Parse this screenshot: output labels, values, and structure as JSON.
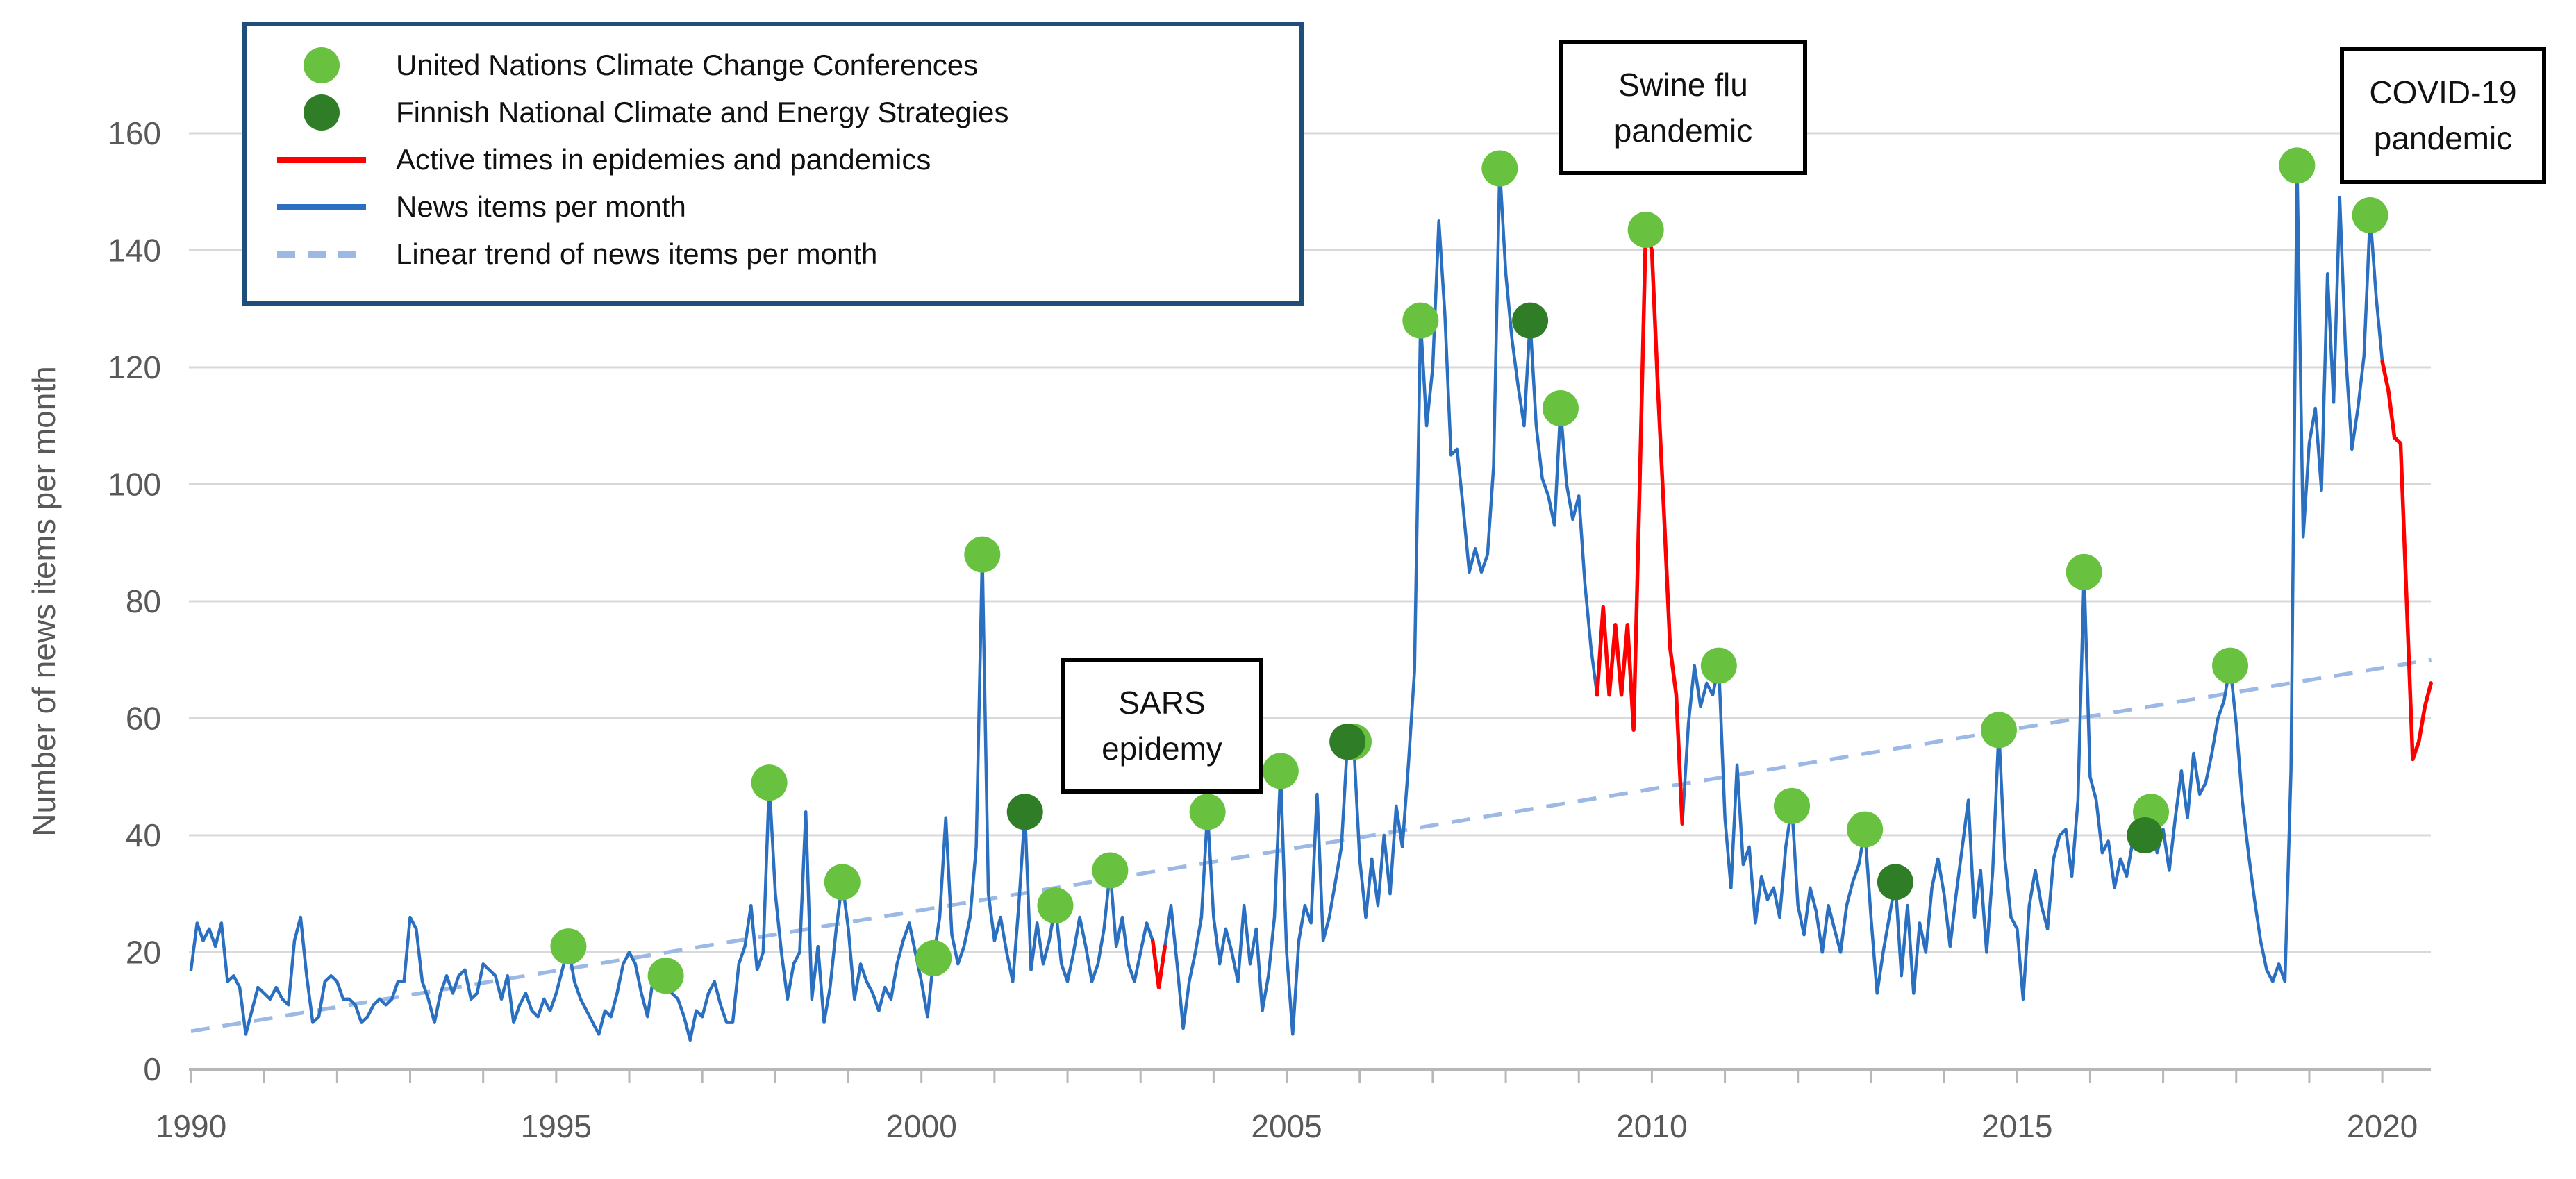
{
  "y_axis": {
    "label": "Number of news items per month",
    "ticks": [
      0,
      20,
      40,
      60,
      80,
      100,
      120,
      140,
      160
    ]
  },
  "x_axis": {
    "labeled_ticks": [
      1990,
      1995,
      2000,
      2005,
      2010,
      2015,
      2020
    ],
    "minor_tick_step_years": 1,
    "range": [
      1990,
      2020.7
    ]
  },
  "legend": {
    "items": [
      {
        "name": "un-climate-conferences",
        "marker": "dot",
        "color": "#68c23f",
        "label": "United Nations Climate Change Conferences"
      },
      {
        "name": "finnish-strategies",
        "marker": "dot",
        "color": "#2f7d26",
        "label": "Finnish National Climate and Energy Strategies"
      },
      {
        "name": "epidemic-times",
        "marker": "line",
        "color": "#ff0000",
        "label": "Active times in epidemies and pandemics"
      },
      {
        "name": "news-items",
        "marker": "line",
        "color": "#2a6fc0",
        "label": "News items per month"
      },
      {
        "name": "linear-trend",
        "marker": "dash",
        "color": "#9cb9e6",
        "label": "Linear trend of news items per month"
      }
    ]
  },
  "annotations": [
    {
      "id": "sars",
      "lines": [
        "SARS",
        "epidemy"
      ]
    },
    {
      "id": "swine",
      "lines": [
        "Swine flu",
        "pandemic"
      ]
    },
    {
      "id": "covid",
      "lines": [
        "COVID-19",
        "pandemic"
      ]
    }
  ],
  "chart_data": {
    "type": "line",
    "title": "",
    "xlabel": "",
    "ylabel": "Number of news items per month",
    "ylim": [
      0,
      170
    ],
    "grid": true,
    "series_start": {
      "year": 1990,
      "month": 1
    },
    "news_items_monthly": [
      17,
      25,
      22,
      24,
      21,
      25,
      15,
      16,
      14,
      6,
      10,
      14,
      13,
      12,
      14,
      12,
      11,
      22,
      26,
      16,
      8,
      9,
      15,
      16,
      15,
      12,
      12,
      11,
      8,
      9,
      11,
      12,
      11,
      12,
      15,
      15,
      26,
      24,
      15,
      12,
      8,
      13,
      16,
      13,
      16,
      17,
      12,
      13,
      18,
      17,
      16,
      12,
      16,
      8,
      11,
      13,
      10,
      9,
      12,
      10,
      13,
      17,
      21,
      15,
      12,
      10,
      8,
      6,
      10,
      9,
      13,
      18,
      20,
      18,
      13,
      9,
      16,
      15,
      16,
      13,
      12,
      9,
      5,
      10,
      9,
      13,
      15,
      11,
      8,
      8,
      18,
      21,
      28,
      17,
      20,
      49,
      30,
      20,
      12,
      18,
      20,
      44,
      12,
      21,
      8,
      14,
      24,
      32,
      24,
      12,
      18,
      15,
      13,
      10,
      14,
      12,
      18,
      22,
      25,
      20,
      15,
      9,
      19,
      26,
      43,
      23,
      18,
      21,
      26,
      38,
      88,
      30,
      22,
      26,
      20,
      15,
      28,
      44,
      17,
      25,
      18,
      22,
      28,
      18,
      15,
      20,
      26,
      21,
      15,
      18,
      24,
      34,
      21,
      26,
      18,
      15,
      20,
      25,
      22,
      14,
      21,
      28,
      18,
      7,
      15,
      20,
      26,
      44,
      26,
      18,
      24,
      20,
      15,
      28,
      18,
      24,
      10,
      16,
      26,
      51,
      20,
      6,
      22,
      28,
      25,
      47,
      22,
      26,
      32,
      38,
      56,
      56,
      36,
      26,
      36,
      28,
      40,
      30,
      45,
      38,
      52,
      68,
      128,
      110,
      120,
      145,
      129,
      105,
      106,
      96,
      85,
      89,
      85,
      88,
      103,
      154,
      136,
      125,
      117,
      110,
      128,
      110,
      101,
      98,
      93,
      113,
      100,
      94,
      98,
      83,
      72,
      64,
      79,
      64,
      76,
      64,
      76,
      58,
      100,
      143.5,
      140,
      116,
      95,
      72,
      64,
      42,
      59,
      69,
      62,
      66,
      64,
      69,
      43,
      31,
      52,
      35,
      38,
      25,
      33,
      29,
      31,
      26,
      38,
      45,
      28,
      23,
      31,
      27,
      20,
      28,
      24,
      20,
      28,
      32,
      35,
      41,
      26,
      13,
      20,
      26,
      32,
      16,
      28,
      13,
      25,
      20,
      31,
      36,
      30,
      21,
      30,
      38,
      46,
      26,
      34,
      20,
      34,
      58,
      36,
      26,
      24,
      12,
      28,
      34,
      28,
      24,
      36,
      40,
      41,
      33,
      46,
      85,
      50,
      46,
      37,
      39,
      31,
      36,
      33,
      39,
      45,
      40,
      44,
      37,
      41,
      34,
      43,
      51,
      43,
      54,
      47,
      49,
      54,
      60,
      63,
      69,
      59,
      46,
      37,
      29,
      22,
      17,
      15,
      18,
      15,
      51,
      154.5,
      91,
      107,
      113,
      99,
      136,
      114,
      149,
      122,
      106,
      113,
      122,
      146,
      132,
      121,
      116,
      108,
      107,
      80,
      53,
      56,
      62,
      66
    ],
    "epidemic_red_ranges": [
      [
        2003.12,
        2003.37
      ],
      [
        2009.2,
        2010.45
      ],
      [
        2019.97,
        2020.7
      ]
    ],
    "trend_line": {
      "start_t": 1990.0,
      "start_value": 6.5,
      "end_t": 2020.67,
      "end_value": 70
    },
    "un_conference_points": [
      [
        1995.167,
        21
      ],
      [
        1996.5,
        16
      ],
      [
        1997.917,
        49
      ],
      [
        1998.917,
        32
      ],
      [
        2000.167,
        19
      ],
      [
        2000.833,
        88
      ],
      [
        2001.833,
        28
      ],
      [
        2002.583,
        34
      ],
      [
        2003.917,
        44
      ],
      [
        2004.917,
        51
      ],
      [
        2005.917,
        56
      ],
      [
        2006.833,
        128
      ],
      [
        2007.917,
        154
      ],
      [
        2008.75,
        113
      ],
      [
        2009.917,
        143.5
      ],
      [
        2010.917,
        69
      ],
      [
        2011.917,
        45
      ],
      [
        2012.917,
        41
      ],
      [
        2014.75,
        58
      ],
      [
        2015.917,
        85
      ],
      [
        2016.833,
        44
      ],
      [
        2017.917,
        69
      ],
      [
        2018.833,
        154.5
      ],
      [
        2019.833,
        146
      ]
    ],
    "finnish_strategy_points": [
      [
        2001.417,
        44
      ],
      [
        2005.833,
        56
      ],
      [
        2008.333,
        128
      ],
      [
        2013.333,
        32
      ],
      [
        2016.75,
        40
      ]
    ],
    "colors": {
      "news_line": "#2a6fc0",
      "epidemic_line": "#ff0000",
      "trend_line": "#9cb9e6",
      "conference_dot": "#68c23f",
      "strategy_dot": "#2f7d26",
      "gridline": "#d9d9d9",
      "axis_line": "#b7b7b7",
      "tick_text": "#595959",
      "legend_border": "#1e4e79"
    }
  }
}
